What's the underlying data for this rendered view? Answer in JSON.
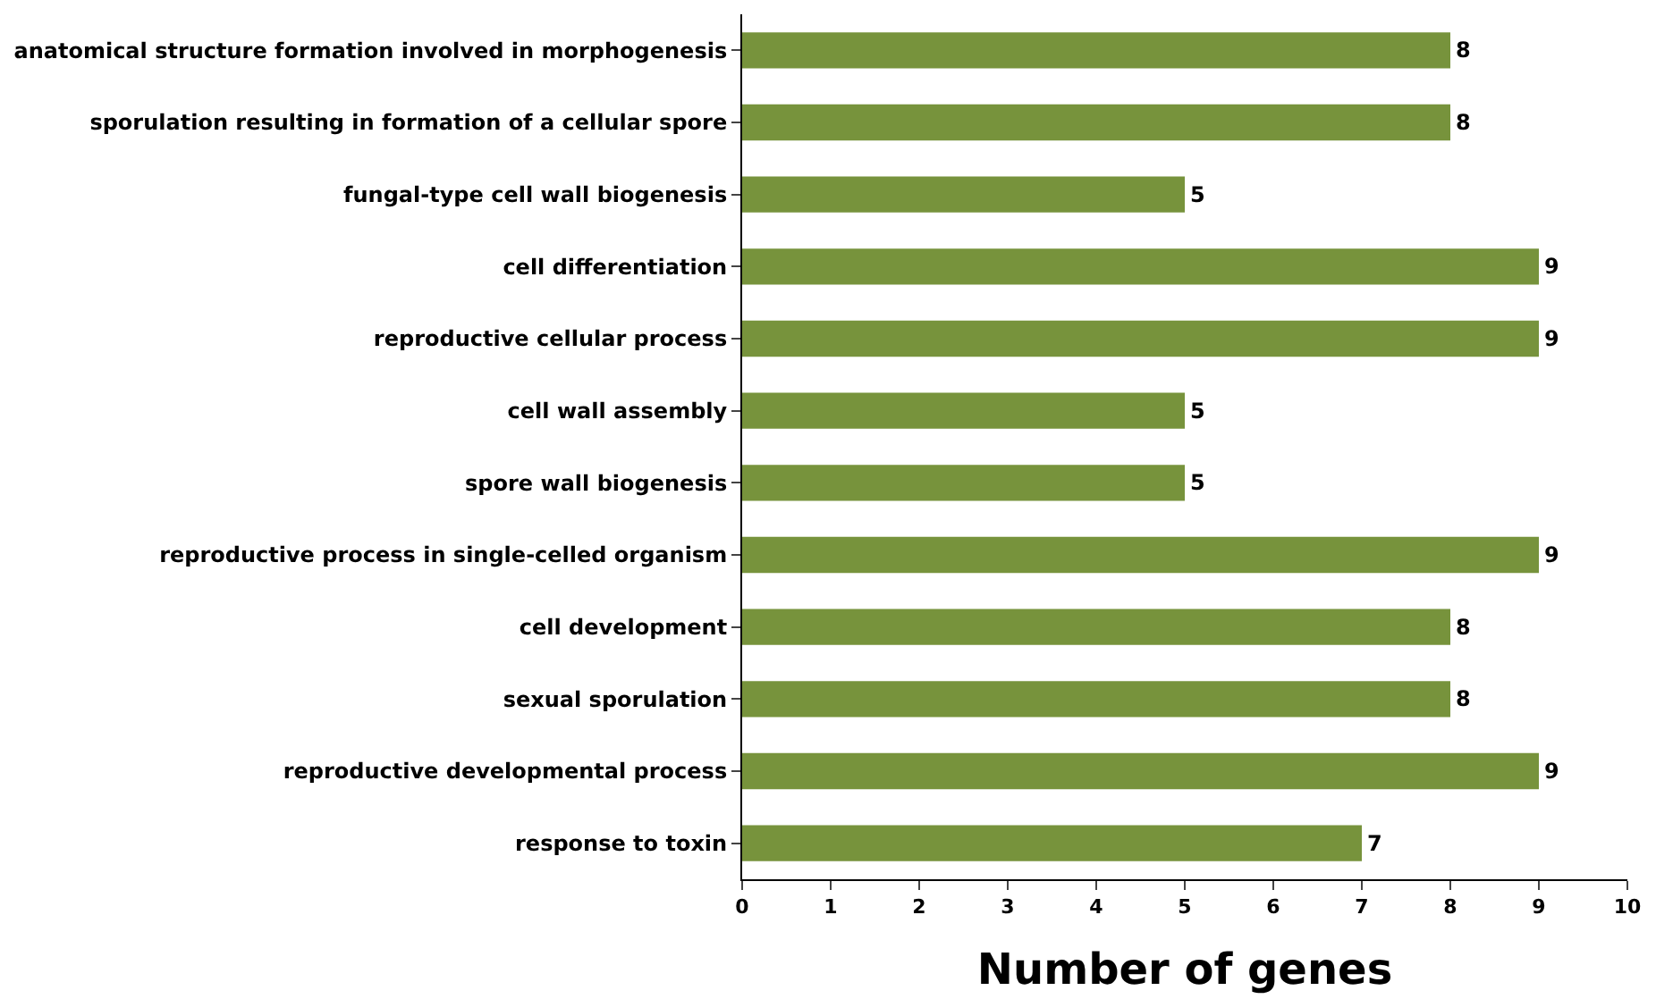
{
  "chart_data": {
    "type": "bar",
    "orientation": "horizontal",
    "xlabel": "Number of genes",
    "categories": [
      "anatomical structure formation involved in morphogenesis",
      "sporulation resulting in formation of a cellular spore",
      "fungal-type cell wall biogenesis",
      "cell differentiation",
      "reproductive cellular process",
      "cell wall assembly",
      "spore wall biogenesis",
      "reproductive process in single-celled organism",
      "cell development",
      "sexual sporulation",
      "reproductive developmental process",
      "response to toxin"
    ],
    "values": [
      8,
      8,
      5,
      9,
      9,
      5,
      5,
      9,
      8,
      8,
      9,
      7
    ],
    "color": "#77933c",
    "data_labels": true,
    "xlim": [
      0,
      10
    ],
    "xticks": [
      0,
      1,
      2,
      3,
      4,
      5,
      6,
      7,
      8,
      9,
      10
    ]
  }
}
